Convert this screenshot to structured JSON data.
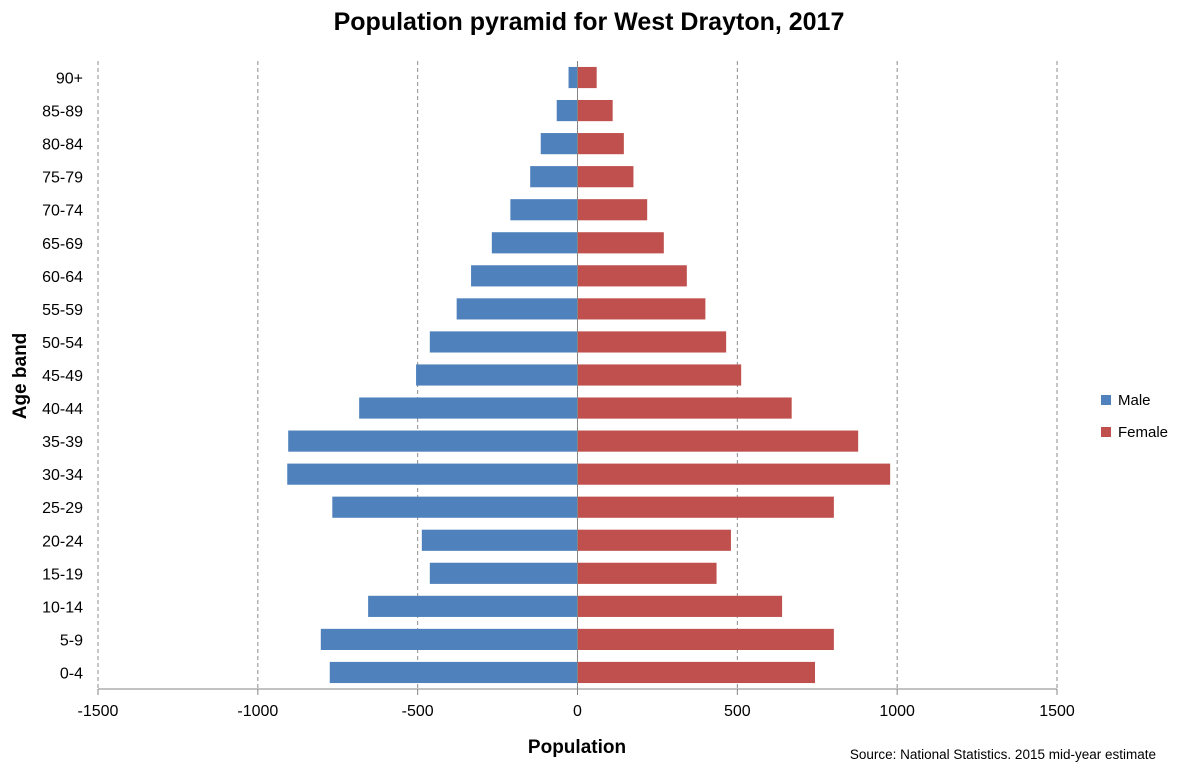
{
  "chart_data": {
    "type": "bar",
    "orientation": "horizontal",
    "title": "Population pyramid for West Drayton, 2017",
    "xlabel": "Population",
    "ylabel": "Age band",
    "xlim": [
      -1500,
      1500
    ],
    "xticks": [
      -1500,
      -1000,
      -500,
      0,
      500,
      1000,
      1500
    ],
    "grid": "vertical-dashed",
    "legend_position": "right",
    "categories": [
      "90+",
      "85-89",
      "80-84",
      "75-79",
      "70-74",
      "65-69",
      "60-64",
      "55-59",
      "50-54",
      "45-49",
      "40-44",
      "35-39",
      "30-34",
      "25-29",
      "20-24",
      "15-19",
      "10-14",
      "5-9",
      "0-4"
    ],
    "series": [
      {
        "name": "Male",
        "color": "#4f81bd",
        "values": [
          -28,
          -65,
          -115,
          -148,
          -210,
          -268,
          -333,
          -378,
          -462,
          -505,
          -683,
          -905,
          -908,
          -767,
          -487,
          -462,
          -655,
          -803,
          -775
        ]
      },
      {
        "name": "Female",
        "color": "#c0504d",
        "values": [
          60,
          110,
          145,
          175,
          218,
          270,
          342,
          400,
          465,
          512,
          670,
          878,
          978,
          802,
          480,
          435,
          640,
          802,
          743
        ]
      }
    ],
    "source": "Source: National Statistics. 2015 mid-year estimate"
  }
}
